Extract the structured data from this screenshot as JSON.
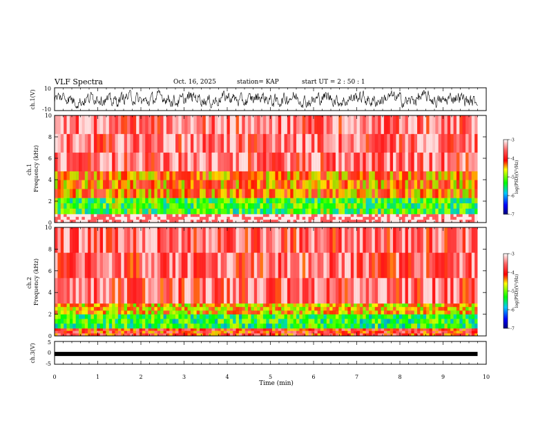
{
  "header": {
    "title": "VLF Spectra",
    "date": "Oct. 16, 2025",
    "station": "station= KAP",
    "start": "start  UT =   2  : 50 : 1"
  },
  "chart_data": [
    {
      "type": "line",
      "id": "ch1_waveform",
      "ylabel": "ch.1(V)",
      "ylim": [
        -10,
        10
      ],
      "yticks": [
        "10",
        "-10"
      ],
      "xlim": [
        0,
        10
      ],
      "data_extent_min": 9.8,
      "approx_amplitude_range_V": [
        -8,
        8
      ]
    },
    {
      "type": "heatmap",
      "id": "ch1_spectrogram",
      "ylabel": "ch.1\nFrequency  (kHz)",
      "ylim": [
        0,
        10
      ],
      "yticks": [
        "0",
        "2",
        "4",
        "6",
        "8",
        "10"
      ],
      "xlim": [
        0,
        10
      ],
      "data_extent_min": 9.8,
      "bands_kHz": [
        {
          "from": 0.0,
          "to": 0.8,
          "level": "mixed",
          "note": "white/pale red with gaps"
        },
        {
          "from": 0.8,
          "to": 2.3,
          "level": -5.2
        },
        {
          "from": 2.3,
          "to": 4.8,
          "level": -4.3
        },
        {
          "from": 4.8,
          "to": 10.0,
          "level": -3.5
        }
      ],
      "colorbar": {
        "label": "log(PSD)(V²/Hz)",
        "ticks": [
          "-3",
          "-4",
          "-5",
          "-6",
          "-7"
        ],
        "range": [
          -7,
          -3
        ]
      }
    },
    {
      "type": "heatmap",
      "id": "ch2_spectrogram",
      "ylabel": "ch.2\nFrequency  (kHz)",
      "ylim": [
        0,
        10
      ],
      "yticks": [
        "0",
        "2",
        "4",
        "6",
        "8",
        "10"
      ],
      "xlim": [
        0,
        10
      ],
      "data_extent_min": 9.8,
      "bands_kHz": [
        {
          "from": 0.0,
          "to": 0.7,
          "level": -4.0
        },
        {
          "from": 0.7,
          "to": 2.0,
          "level": -5.3
        },
        {
          "from": 2.0,
          "to": 3.0,
          "level": -4.5
        },
        {
          "from": 3.0,
          "to": 10.0,
          "level": -3.6
        }
      ],
      "colorbar": {
        "label": "log(PSD)(V²/Hz)",
        "ticks": [
          "-3",
          "-4",
          "-5",
          "-6",
          "-7"
        ],
        "range": [
          -7,
          -3
        ]
      }
    },
    {
      "type": "line",
      "id": "ch3_waveform",
      "ylabel": "ch.3(V)",
      "ylim": [
        -5,
        5
      ],
      "yticks": [
        "5",
        "0",
        "-5"
      ],
      "xlim": [
        0,
        10
      ],
      "data_extent_min": 9.8,
      "approx_value_V": -0.5
    }
  ],
  "xaxis": {
    "label": "Time  (min)",
    "ticks": [
      "0",
      "1",
      "2",
      "3",
      "4",
      "5",
      "6",
      "7",
      "8",
      "9",
      "10"
    ]
  },
  "colors": {
    "high": "#ff0000",
    "mid": "#ffff00",
    "low": "#00ff00",
    "floor": "#0000ff"
  }
}
